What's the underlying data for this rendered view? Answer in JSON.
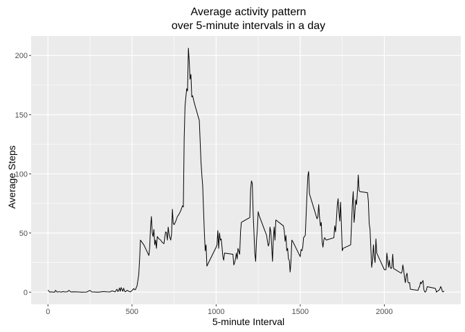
{
  "chart_data": {
    "type": "line",
    "title_line1": "Average activity pattern",
    "title_line2": "over 5-minute intervals in a day",
    "xlabel": "5-minute Interval",
    "ylabel": "Average Steps",
    "xlim": [
      -100,
      2455
    ],
    "ylim": [
      -10.3,
      216.5
    ],
    "x_ticks": [
      0,
      500,
      1000,
      1500,
      2000
    ],
    "y_ticks": [
      0,
      50,
      100,
      150,
      200
    ],
    "x_tick_labels": [
      "0",
      "500",
      "1000",
      "1500",
      "2000"
    ],
    "y_tick_labels": [
      "0",
      "50",
      "100",
      "150",
      "200"
    ],
    "grid": true,
    "background_color": "#ebebeb",
    "grid_color": "#ffffff",
    "line_color": "#000000",
    "series": [
      {
        "points": [
          [
            0,
            1.7
          ],
          [
            10,
            0.1
          ],
          [
            20,
            0.2
          ],
          [
            30,
            0.1
          ],
          [
            40,
            0.0
          ],
          [
            45,
            1.5
          ],
          [
            55,
            0.1
          ],
          [
            65,
            0.4
          ],
          [
            80,
            0.1
          ],
          [
            90,
            0.5
          ],
          [
            100,
            0.2
          ],
          [
            115,
            0.3
          ],
          [
            125,
            1.5
          ],
          [
            135,
            0.2
          ],
          [
            150,
            0.3
          ],
          [
            175,
            0.2
          ],
          [
            200,
            0.0
          ],
          [
            230,
            0.1
          ],
          [
            250,
            1.5
          ],
          [
            260,
            0.2
          ],
          [
            300,
            0.0
          ],
          [
            330,
            0.5
          ],
          [
            350,
            0.3
          ],
          [
            370,
            0.2
          ],
          [
            380,
            1.1
          ],
          [
            400,
            0.3
          ],
          [
            410,
            2.5
          ],
          [
            415,
            0.5
          ],
          [
            420,
            1.1
          ],
          [
            425,
            3.5
          ],
          [
            430,
            0.7
          ],
          [
            435,
            3.9
          ],
          [
            440,
            2.4
          ],
          [
            445,
            0.7
          ],
          [
            450,
            3.3
          ],
          [
            455,
            1.0
          ],
          [
            460,
            0.3
          ],
          [
            470,
            1.5
          ],
          [
            480,
            0.8
          ],
          [
            490,
            0.2
          ],
          [
            500,
            1.4
          ],
          [
            510,
            3.0
          ],
          [
            515,
            2.2
          ],
          [
            520,
            2.1
          ],
          [
            530,
            5.5
          ],
          [
            540,
            15.0
          ],
          [
            545,
            28.0
          ],
          [
            550,
            44.0
          ],
          [
            560,
            42.0
          ],
          [
            570,
            40.0
          ],
          [
            580,
            37.0
          ],
          [
            590,
            34.0
          ],
          [
            600,
            31.0
          ],
          [
            605,
            38.0
          ],
          [
            610,
            55.0
          ],
          [
            615,
            63.9
          ],
          [
            620,
            50.0
          ],
          [
            625,
            47.0
          ],
          [
            630,
            53.0
          ],
          [
            635,
            40.0
          ],
          [
            640,
            44.0
          ],
          [
            645,
            37.0
          ],
          [
            650,
            47.0
          ],
          [
            660,
            45.0
          ],
          [
            670,
            44.0
          ],
          [
            680,
            42.0
          ],
          [
            690,
            41.0
          ],
          [
            695,
            47.0
          ],
          [
            700,
            51.0
          ],
          [
            705,
            50.0
          ],
          [
            710,
            44.0
          ],
          [
            715,
            55.0
          ],
          [
            720,
            49.0
          ],
          [
            725,
            46.0
          ],
          [
            730,
            44.0
          ],
          [
            735,
            49.0
          ],
          [
            740,
            70.0
          ],
          [
            745,
            58.0
          ],
          [
            750,
            57.0
          ],
          [
            760,
            60.0
          ],
          [
            770,
            64.0
          ],
          [
            780,
            66.0
          ],
          [
            790,
            69.0
          ],
          [
            800,
            73.0
          ],
          [
            805,
            72.0
          ],
          [
            810,
            130.0
          ],
          [
            815,
            157.0
          ],
          [
            820,
            165.0
          ],
          [
            825,
            172.0
          ],
          [
            830,
            170.0
          ],
          [
            835,
            206.2
          ],
          [
            840,
            195.0
          ],
          [
            845,
            180.0
          ],
          [
            850,
            184.0
          ],
          [
            855,
            165.0
          ],
          [
            860,
            166.0
          ],
          [
            870,
            160.0
          ],
          [
            880,
            155.0
          ],
          [
            890,
            150.0
          ],
          [
            900,
            145.0
          ],
          [
            910,
            110.0
          ],
          [
            915,
            99.0
          ],
          [
            920,
            90.0
          ],
          [
            925,
            70.0
          ],
          [
            930,
            50.0
          ],
          [
            935,
            35.0
          ],
          [
            940,
            40.0
          ],
          [
            945,
            22.0
          ],
          [
            955,
            25.0
          ],
          [
            1000,
            38.0
          ],
          [
            1005,
            40.0
          ],
          [
            1010,
            52.0
          ],
          [
            1015,
            37.0
          ],
          [
            1020,
            50.0
          ],
          [
            1025,
            44.0
          ],
          [
            1030,
            45.0
          ],
          [
            1035,
            38.0
          ],
          [
            1040,
            30.0
          ],
          [
            1045,
            27.0
          ],
          [
            1050,
            33.0
          ],
          [
            1100,
            32.0
          ],
          [
            1105,
            23.0
          ],
          [
            1110,
            25.0
          ],
          [
            1115,
            28.0
          ],
          [
            1120,
            33.0
          ],
          [
            1125,
            28.0
          ],
          [
            1130,
            37.0
          ],
          [
            1140,
            32.0
          ],
          [
            1145,
            51.0
          ],
          [
            1150,
            59.0
          ],
          [
            1200,
            63.0
          ],
          [
            1205,
            87.0
          ],
          [
            1210,
            94.0
          ],
          [
            1215,
            92.0
          ],
          [
            1220,
            67.0
          ],
          [
            1225,
            50.0
          ],
          [
            1230,
            33.0
          ],
          [
            1235,
            26.0
          ],
          [
            1240,
            44.0
          ],
          [
            1245,
            53.0
          ],
          [
            1250,
            68.0
          ],
          [
            1255,
            65.0
          ],
          [
            1300,
            48.0
          ],
          [
            1305,
            43.0
          ],
          [
            1310,
            39.0
          ],
          [
            1315,
            41.0
          ],
          [
            1320,
            55.0
          ],
          [
            1325,
            51.0
          ],
          [
            1330,
            40.0
          ],
          [
            1335,
            26.0
          ],
          [
            1340,
            45.0
          ],
          [
            1345,
            55.0
          ],
          [
            1350,
            44.0
          ],
          [
            1355,
            61.0
          ],
          [
            1400,
            56.0
          ],
          [
            1405,
            52.0
          ],
          [
            1410,
            43.0
          ],
          [
            1415,
            48.0
          ],
          [
            1420,
            35.0
          ],
          [
            1425,
            37.0
          ],
          [
            1430,
            28.0
          ],
          [
            1435,
            27.0
          ],
          [
            1440,
            17.0
          ],
          [
            1445,
            26.0
          ],
          [
            1450,
            44.0
          ],
          [
            1455,
            43.0
          ],
          [
            1500,
            30.0
          ],
          [
            1505,
            36.0
          ],
          [
            1510,
            35.0
          ],
          [
            1515,
            38.0
          ],
          [
            1520,
            46.0
          ],
          [
            1525,
            47.0
          ],
          [
            1530,
            48.0
          ],
          [
            1535,
            65.0
          ],
          [
            1540,
            82.0
          ],
          [
            1545,
            98.0
          ],
          [
            1550,
            102.0
          ],
          [
            1555,
            83.0
          ],
          [
            1600,
            62.0
          ],
          [
            1605,
            64.0
          ],
          [
            1610,
            74.0
          ],
          [
            1615,
            63.0
          ],
          [
            1620,
            56.0
          ],
          [
            1625,
            59.0
          ],
          [
            1630,
            43.0
          ],
          [
            1635,
            38.0
          ],
          [
            1640,
            44.0
          ],
          [
            1645,
            46.0
          ],
          [
            1650,
            45.0
          ],
          [
            1655,
            44.0
          ],
          [
            1700,
            46.0
          ],
          [
            1705,
            56.0
          ],
          [
            1710,
            51.0
          ],
          [
            1715,
            61.0
          ],
          [
            1720,
            73.0
          ],
          [
            1725,
            79.0
          ],
          [
            1730,
            68.0
          ],
          [
            1735,
            60.0
          ],
          [
            1740,
            76.0
          ],
          [
            1745,
            56.0
          ],
          [
            1750,
            35.0
          ],
          [
            1755,
            37.0
          ],
          [
            1800,
            40.0
          ],
          [
            1805,
            58.0
          ],
          [
            1810,
            74.0
          ],
          [
            1815,
            85.0
          ],
          [
            1820,
            59.0
          ],
          [
            1825,
            67.0
          ],
          [
            1830,
            78.0
          ],
          [
            1835,
            74.0
          ],
          [
            1840,
            85.0
          ],
          [
            1845,
            99.0
          ],
          [
            1850,
            86.0
          ],
          [
            1855,
            85.0
          ],
          [
            1900,
            84.0
          ],
          [
            1905,
            77.0
          ],
          [
            1910,
            58.0
          ],
          [
            1915,
            53.0
          ],
          [
            1920,
            36.0
          ],
          [
            1925,
            21.0
          ],
          [
            1930,
            27.0
          ],
          [
            1935,
            40.0
          ],
          [
            1940,
            30.0
          ],
          [
            1945,
            25.0
          ],
          [
            1950,
            45.0
          ],
          [
            1955,
            33.0
          ],
          [
            2000,
            19.0
          ],
          [
            2005,
            19.0
          ],
          [
            2010,
            19.0
          ],
          [
            2015,
            33.0
          ],
          [
            2020,
            27.0
          ],
          [
            2025,
            21.0
          ],
          [
            2030,
            27.0
          ],
          [
            2035,
            21.0
          ],
          [
            2040,
            20.0
          ],
          [
            2045,
            21.0
          ],
          [
            2050,
            32.0
          ],
          [
            2055,
            20.0
          ],
          [
            2100,
            16.0
          ],
          [
            2105,
            17.0
          ],
          [
            2110,
            23.0
          ],
          [
            2115,
            19.0
          ],
          [
            2120,
            12.0
          ],
          [
            2125,
            8.0
          ],
          [
            2130,
            14.0
          ],
          [
            2135,
            16.0
          ],
          [
            2140,
            8.7
          ],
          [
            2145,
            7.8
          ],
          [
            2150,
            8.1
          ],
          [
            2155,
            2.5
          ],
          [
            2200,
            1.5
          ],
          [
            2205,
            3.7
          ],
          [
            2210,
            4.8
          ],
          [
            2215,
            8.5
          ],
          [
            2220,
            7.1
          ],
          [
            2225,
            8.7
          ],
          [
            2230,
            9.8
          ],
          [
            2235,
            2.2
          ],
          [
            2240,
            0.3
          ],
          [
            2245,
            0.1
          ],
          [
            2250,
            1.6
          ],
          [
            2255,
            4.6
          ],
          [
            2300,
            3.3
          ],
          [
            2305,
            2.8
          ],
          [
            2310,
            0.0
          ],
          [
            2315,
            0.8
          ],
          [
            2320,
            1.0
          ],
          [
            2325,
            1.6
          ],
          [
            2330,
            2.6
          ],
          [
            2335,
            4.7
          ],
          [
            2340,
            3.3
          ],
          [
            2345,
            0.6
          ],
          [
            2350,
            0.2
          ],
          [
            2355,
            1.1
          ]
        ]
      }
    ]
  }
}
